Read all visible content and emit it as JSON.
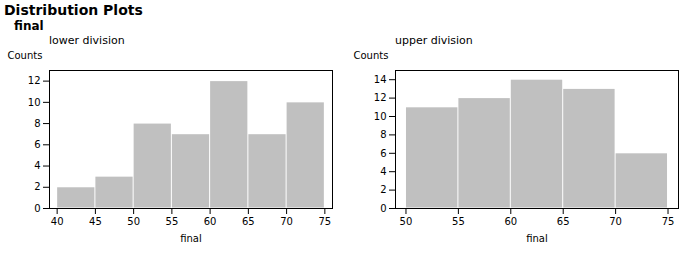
{
  "title": "Distribution Plots",
  "subtitle": "final",
  "chart_data": [
    {
      "type": "histogram",
      "title": "lower division",
      "bins": [
        40,
        45,
        50,
        55,
        60,
        65,
        70,
        75
      ],
      "values": [
        2,
        3,
        8,
        7,
        12,
        7,
        10
      ],
      "xlabel": "final",
      "ylabel": "Counts",
      "xlim": [
        39,
        76
      ],
      "ylim": [
        0,
        13
      ],
      "xticks": [
        40,
        45,
        50,
        55,
        60,
        65,
        70,
        75
      ],
      "yticks": [
        0,
        2,
        4,
        6,
        8,
        10,
        12
      ],
      "color": "#c0c0c0"
    },
    {
      "type": "histogram",
      "title": "upper division",
      "bins": [
        50,
        55,
        60,
        65,
        70,
        75
      ],
      "values": [
        11,
        12,
        14,
        13,
        6
      ],
      "xlabel": "final",
      "ylabel": "Counts",
      "xlim": [
        49,
        76
      ],
      "ylim": [
        0,
        15
      ],
      "xticks": [
        50,
        55,
        60,
        65,
        70,
        75
      ],
      "yticks": [
        0,
        2,
        4,
        6,
        8,
        10,
        12,
        14
      ],
      "color": "#c0c0c0"
    }
  ]
}
